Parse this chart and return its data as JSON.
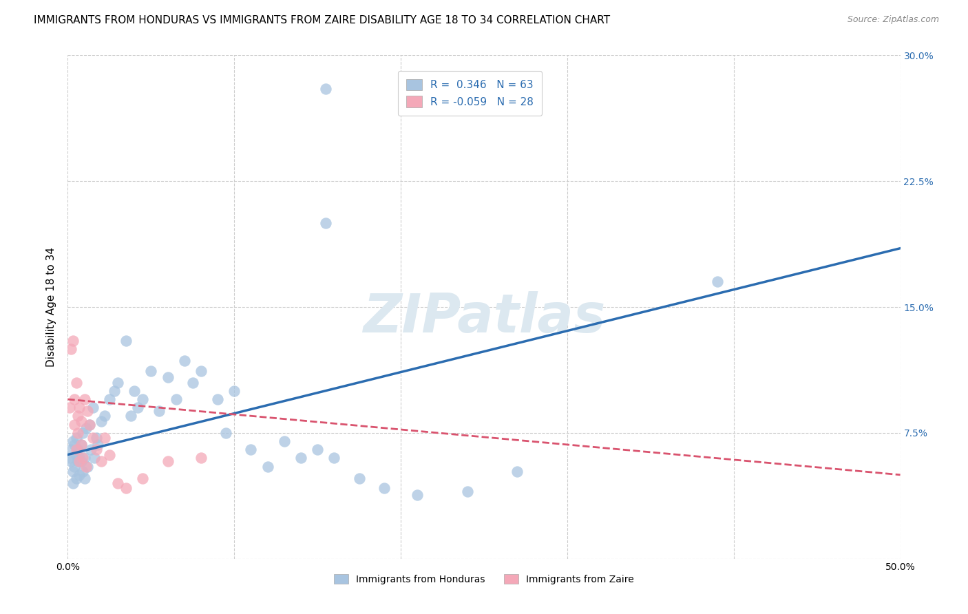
{
  "title": "IMMIGRANTS FROM HONDURAS VS IMMIGRANTS FROM ZAIRE DISABILITY AGE 18 TO 34 CORRELATION CHART",
  "source": "Source: ZipAtlas.com",
  "ylabel": "Disability Age 18 to 34",
  "xlim": [
    0.0,
    0.5
  ],
  "ylim": [
    0.0,
    0.3
  ],
  "xticks": [
    0.0,
    0.1,
    0.2,
    0.3,
    0.4,
    0.5
  ],
  "yticks": [
    0.0,
    0.075,
    0.15,
    0.225,
    0.3
  ],
  "xticklabels_show": [
    "0.0%",
    "50.0%"
  ],
  "yticklabels_right": [
    "",
    "7.5%",
    "15.0%",
    "22.5%",
    "30.0%"
  ],
  "R_honduras": 0.346,
  "N_honduras": 63,
  "R_zaire": -0.059,
  "N_zaire": 28,
  "honduras_color": "#a8c4e0",
  "zaire_color": "#f4a8b8",
  "line_honduras_color": "#2b6cb0",
  "line_zaire_color": "#d9536e",
  "background_color": "#ffffff",
  "grid_color": "#cccccc",
  "watermark_color": "#dce8f0",
  "title_fontsize": 11,
  "axis_label_fontsize": 11,
  "tick_fontsize": 10,
  "legend_fontsize": 11,
  "line_h_x0": 0.0,
  "line_h_y0": 0.062,
  "line_h_x1": 0.5,
  "line_h_y1": 0.185,
  "line_z_x0": 0.0,
  "line_z_y0": 0.095,
  "line_z_x1": 0.5,
  "line_z_y1": 0.05,
  "honduras_x": [
    0.001,
    0.002,
    0.002,
    0.003,
    0.003,
    0.003,
    0.004,
    0.004,
    0.005,
    0.005,
    0.005,
    0.006,
    0.006,
    0.007,
    0.007,
    0.008,
    0.008,
    0.009,
    0.009,
    0.01,
    0.01,
    0.011,
    0.012,
    0.013,
    0.014,
    0.015,
    0.016,
    0.017,
    0.018,
    0.02,
    0.022,
    0.025,
    0.028,
    0.03,
    0.035,
    0.038,
    0.04,
    0.042,
    0.045,
    0.05,
    0.055,
    0.06,
    0.065,
    0.07,
    0.075,
    0.08,
    0.09,
    0.095,
    0.1,
    0.11,
    0.12,
    0.13,
    0.14,
    0.15,
    0.16,
    0.175,
    0.19,
    0.21,
    0.24,
    0.27,
    0.39,
    0.155,
    0.155
  ],
  "honduras_y": [
    0.06,
    0.058,
    0.065,
    0.052,
    0.07,
    0.045,
    0.055,
    0.068,
    0.062,
    0.048,
    0.072,
    0.058,
    0.065,
    0.05,
    0.06,
    0.058,
    0.068,
    0.052,
    0.075,
    0.06,
    0.048,
    0.078,
    0.055,
    0.08,
    0.065,
    0.09,
    0.06,
    0.072,
    0.068,
    0.082,
    0.085,
    0.095,
    0.1,
    0.105,
    0.13,
    0.085,
    0.1,
    0.09,
    0.095,
    0.112,
    0.088,
    0.108,
    0.095,
    0.118,
    0.105,
    0.112,
    0.095,
    0.075,
    0.1,
    0.065,
    0.055,
    0.07,
    0.06,
    0.065,
    0.06,
    0.048,
    0.042,
    0.038,
    0.04,
    0.052,
    0.165,
    0.28,
    0.2
  ],
  "zaire_x": [
    0.001,
    0.002,
    0.003,
    0.004,
    0.004,
    0.005,
    0.005,
    0.006,
    0.006,
    0.007,
    0.007,
    0.008,
    0.008,
    0.009,
    0.01,
    0.011,
    0.012,
    0.013,
    0.015,
    0.017,
    0.02,
    0.022,
    0.025,
    0.03,
    0.035,
    0.045,
    0.06,
    0.08
  ],
  "zaire_y": [
    0.09,
    0.125,
    0.13,
    0.08,
    0.095,
    0.105,
    0.065,
    0.085,
    0.075,
    0.09,
    0.058,
    0.068,
    0.082,
    0.06,
    0.095,
    0.055,
    0.088,
    0.08,
    0.072,
    0.065,
    0.058,
    0.072,
    0.062,
    0.045,
    0.042,
    0.048,
    0.058,
    0.06
  ]
}
